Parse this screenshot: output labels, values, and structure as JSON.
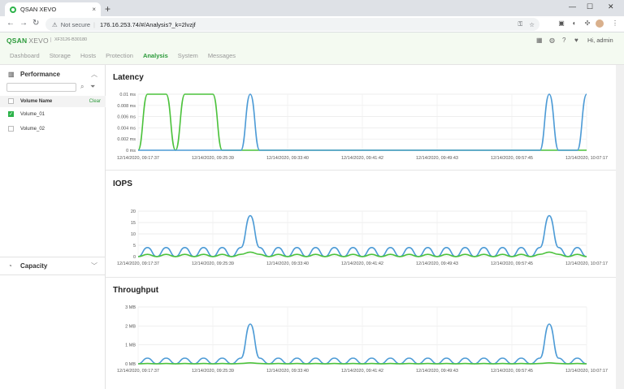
{
  "browser": {
    "tab_title": "QSAN XEVO",
    "tab_close": "×",
    "new_tab": "+",
    "security": "Not secure",
    "url": "176.16.253.74/#/Analysis?_k=2lvzjf",
    "window_min": "—",
    "window_max": "☐",
    "window_close": "✕"
  },
  "app": {
    "brand": "QSAN",
    "product": "XEVO",
    "model": "XF3126-B30180",
    "user_label": "Hi, admin",
    "menu": [
      {
        "label": "Dashboard",
        "active": false
      },
      {
        "label": "Storage",
        "active": false
      },
      {
        "label": "Hosts",
        "active": false
      },
      {
        "label": "Protection",
        "active": false
      },
      {
        "label": "Analysis",
        "active": true
      },
      {
        "label": "System",
        "active": false
      },
      {
        "label": "Messages",
        "active": false
      }
    ]
  },
  "sidebar": {
    "performance_title": "Performance",
    "volume_header": "Volume Name",
    "clear_label": "Clear",
    "volumes": [
      {
        "name": "Volume_01",
        "checked": true
      },
      {
        "name": "Volume_02",
        "checked": false
      }
    ],
    "capacity_title": "Capacity"
  },
  "colors": {
    "accent": "#2b9a3a",
    "series_green": "#4cc23c",
    "series_blue": "#4d9bd6"
  },
  "chart_data": [
    {
      "type": "line",
      "title": "Latency",
      "y_ticks": [
        "0.01 ms",
        "0.008 ms",
        "0.006 ms",
        "0.004 ms",
        "0.002 ms",
        "0 ms"
      ],
      "ylim": [
        0,
        0.01
      ],
      "x_ticks": [
        "12/14/2020, 09:17:37",
        "12/14/2020, 09:25:39",
        "12/14/2020, 09:33:40",
        "12/14/2020, 09:41:42",
        "12/14/2020, 09:49:43",
        "12/14/2020, 09:57:45",
        "12/14/2020, 10:07:17"
      ],
      "series": [
        {
          "color": "green",
          "values": [
            0,
            0.01,
            0.01,
            0.01,
            0,
            0.01,
            0.01,
            0.01,
            0.01,
            0,
            0,
            0,
            0,
            0,
            0,
            0,
            0,
            0,
            0,
            0,
            0,
            0,
            0,
            0,
            0,
            0,
            0,
            0,
            0,
            0,
            0,
            0,
            0,
            0,
            0,
            0,
            0,
            0,
            0,
            0,
            0,
            0,
            0,
            0,
            0,
            0,
            0,
            0,
            0
          ]
        },
        {
          "color": "blue",
          "values": [
            0,
            0,
            0,
            0,
            0,
            0,
            0,
            0,
            0,
            0,
            0,
            0,
            0.01,
            0,
            0,
            0,
            0,
            0,
            0,
            0,
            0,
            0,
            0,
            0,
            0,
            0,
            0,
            0,
            0,
            0,
            0,
            0,
            0,
            0,
            0,
            0,
            0,
            0,
            0,
            0,
            0,
            0,
            0,
            0,
            0.01,
            0,
            0,
            0,
            0.01
          ]
        }
      ]
    },
    {
      "type": "line",
      "title": "IOPS",
      "y_ticks": [
        "20",
        "15",
        "10",
        "5",
        "0"
      ],
      "ylim": [
        0,
        20
      ],
      "x_ticks": [
        "12/14/2020, 09:17:37",
        "12/14/2020, 09:25:39",
        "12/14/2020, 09:33:40",
        "12/14/2020, 09:41:42",
        "12/14/2020, 09:49:43",
        "12/14/2020, 09:57:45",
        "12/14/2020, 10:07:17"
      ],
      "series": [
        {
          "color": "blue",
          "values": [
            0,
            4,
            0,
            4,
            0,
            4,
            0,
            4,
            0,
            4,
            0,
            4,
            18,
            4,
            0,
            4,
            0,
            4,
            0,
            4,
            0,
            4,
            0,
            4,
            0,
            4,
            0,
            4,
            0,
            4,
            0,
            4,
            0,
            4,
            0,
            4,
            0,
            4,
            0,
            4,
            0,
            4,
            0,
            4,
            18,
            4,
            0,
            4,
            0
          ]
        },
        {
          "color": "green",
          "values": [
            0,
            1,
            0,
            1,
            0,
            1,
            0,
            1,
            0,
            1,
            0,
            1,
            2,
            1,
            0,
            1,
            0,
            1,
            0,
            1,
            0,
            1,
            0,
            1,
            0,
            1,
            0,
            1,
            0,
            1,
            0,
            1,
            0,
            1,
            0,
            1,
            0,
            1,
            0,
            1,
            0,
            1,
            0,
            1,
            2,
            1,
            0,
            1,
            0
          ]
        }
      ]
    },
    {
      "type": "line",
      "title": "Throughput",
      "y_ticks": [
        "3 MB",
        "2 MB",
        "1 MB",
        "0 MB"
      ],
      "ylim": [
        0,
        3
      ],
      "x_ticks": [
        "12/14/2020, 09:17:37",
        "12/14/2020, 09:25:39",
        "12/14/2020, 09:33:40",
        "12/14/2020, 09:41:42",
        "12/14/2020, 09:49:43",
        "12/14/2020, 09:57:45",
        "12/14/2020, 10:07:17"
      ],
      "series": [
        {
          "color": "blue",
          "values": [
            0,
            0.3,
            0,
            0.3,
            0,
            0.3,
            0,
            0.3,
            0,
            0.3,
            0,
            0.3,
            2.1,
            0.3,
            0,
            0.3,
            0,
            0.3,
            0,
            0.3,
            0,
            0.3,
            0,
            0.3,
            0,
            0.3,
            0,
            0.3,
            0,
            0.3,
            0,
            0.3,
            0,
            0.3,
            0,
            0.3,
            0,
            0.3,
            0,
            0.3,
            0,
            0.3,
            0,
            0.3,
            2.1,
            0.3,
            0,
            0.3,
            0
          ]
        },
        {
          "color": "green",
          "values": [
            0,
            0.02,
            0,
            0.02,
            0,
            0.02,
            0,
            0.02,
            0,
            0.02,
            0,
            0.02,
            0.05,
            0.02,
            0,
            0.02,
            0,
            0.02,
            0,
            0.02,
            0,
            0.02,
            0,
            0.02,
            0,
            0.02,
            0,
            0.02,
            0,
            0.02,
            0,
            0.02,
            0,
            0.02,
            0,
            0.02,
            0,
            0.02,
            0,
            0.02,
            0,
            0.02,
            0,
            0.02,
            0.05,
            0.02,
            0,
            0.02,
            0
          ]
        }
      ]
    }
  ]
}
